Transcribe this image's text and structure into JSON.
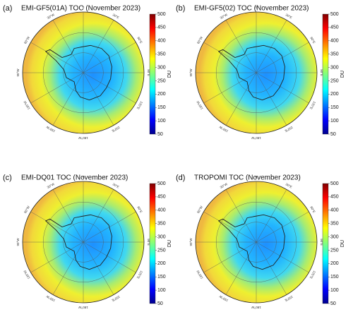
{
  "panels": [
    {
      "label": "(a)",
      "title": "EMI-GF5(01A)  TOC (November 2023)",
      "colorbar": {
        "lim": [
          50,
          500
        ],
        "ticks": [
          50,
          100,
          150,
          200,
          250,
          300,
          350,
          400,
          450,
          500
        ],
        "unit": "DU"
      }
    },
    {
      "label": "(b)",
      "title": "EMI-GF5(02)  TOC (November 2023)",
      "colorbar": {
        "lim": [
          50,
          500
        ],
        "ticks": [
          50,
          100,
          150,
          200,
          250,
          300,
          350,
          400,
          450,
          500
        ],
        "unit": "DU"
      }
    },
    {
      "label": "(c)",
      "title": "EMI-DQ01  TOC (November 2023)",
      "colorbar": {
        "lim": [
          50,
          500
        ],
        "ticks": [
          50,
          100,
          150,
          200,
          250,
          300,
          350,
          400,
          450,
          500
        ],
        "unit": "DU"
      }
    },
    {
      "label": "(d)",
      "title": "TROPOMI  TOC (November 2023)",
      "colorbar": {
        "lim": [
          50,
          500
        ],
        "ticks": [
          50,
          100,
          150,
          200,
          250,
          300,
          350,
          400,
          450,
          500
        ],
        "unit": "DU"
      }
    }
  ],
  "longitude_labels": [
    "0",
    "30°E",
    "60°E",
    "90°E",
    "120°E",
    "150°E",
    "180°W",
    "150°W",
    "120°W",
    "90°W",
    "60°W",
    "30°W"
  ]
}
